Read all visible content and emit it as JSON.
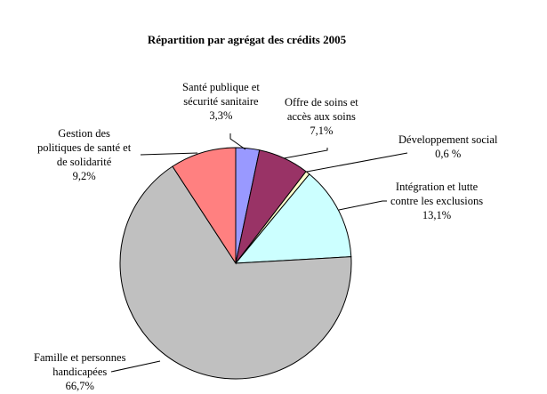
{
  "chart_data": {
    "type": "pie",
    "title": "Répartition par agrégat des crédits 2005",
    "slices": [
      {
        "name": "Santé publique et sécurité sanitaire",
        "line1": "Santé publique et",
        "line2": "sécurité sanitaire",
        "value": 3.3,
        "label": "3,3%",
        "color": "#9999FF"
      },
      {
        "name": "Offre de soins et accès aux soins",
        "line1": "Offre de soins et",
        "line2": "accès aux soins",
        "value": 7.1,
        "label": "7,1%",
        "color": "#993366"
      },
      {
        "name": "Développement social",
        "line1": "Développement social",
        "value": 0.6,
        "label": "0,6 %",
        "color": "#FFFFCC"
      },
      {
        "name": "Intégration et lutte contre les exclusions",
        "line1": "Intégration et lutte",
        "line2": "contre les exclusions",
        "value": 13.1,
        "label": "13,1%",
        "color": "#CCFFFF"
      },
      {
        "name": "Famille et personnes handicapées",
        "line1": "Famille et personnes",
        "line2": "handicapées",
        "value": 66.7,
        "label": "66,7%",
        "color": "#C0C0C0"
      },
      {
        "name": "Gestion des politiques de santé et de solidarité",
        "line1": "Gestion des",
        "line2": "politiques de santé et",
        "line3": "de solidarité",
        "value": 9.2,
        "label": "9,2%",
        "color": "#FF8080"
      }
    ],
    "legend": "none"
  }
}
